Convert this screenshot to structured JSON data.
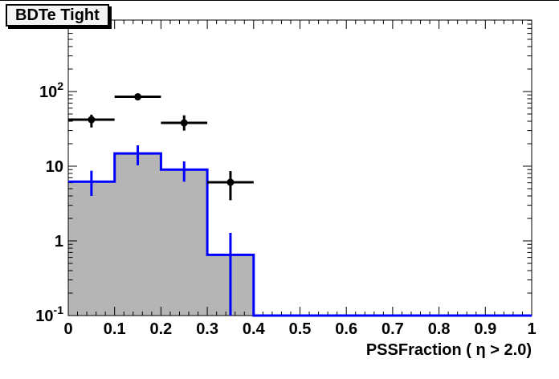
{
  "title": "BDTe Tight",
  "colors": {
    "background": "#ffffff",
    "frame": "#000000",
    "hist_fill": "#b5b5b5",
    "hist_line": "#0000ff",
    "marker": "#000000",
    "title_box_bg": "#f4f4f4"
  },
  "chart_data": {
    "type": "bar",
    "title": "BDTe Tight",
    "xlabel": "PSSFraction ( η > 2.0)",
    "ylabel": "",
    "xlim": [
      0,
      1
    ],
    "ylim": [
      0.1,
      905
    ],
    "yscale": "log",
    "grid": false,
    "legend": "none",
    "bin_edges": [
      0,
      0.1,
      0.2,
      0.3,
      0.4,
      0.5,
      0.6,
      0.7,
      0.8,
      0.9,
      1.0
    ],
    "series": [
      {
        "name": "filled-histogram",
        "type": "bar",
        "line_color": "#0000ff",
        "fill_color": "#b5b5b5",
        "values": [
          6.2,
          14.8,
          9.0,
          0.65,
          0,
          0,
          0,
          0,
          0,
          0
        ],
        "error_bars": [
          {
            "x": 0.05,
            "lo": 4.0,
            "hi": 8.7
          },
          {
            "x": 0.15,
            "lo": 10.3,
            "hi": 19.0
          },
          {
            "x": 0.25,
            "lo": 6.2,
            "hi": 11.6
          },
          {
            "x": 0.35,
            "lo": 0.1,
            "hi": 1.28
          }
        ]
      },
      {
        "name": "data-points",
        "type": "scatter",
        "color": "#000000",
        "points": [
          {
            "x": 0.05,
            "y": 42,
            "ylo": 33,
            "yhi": 49,
            "xlo": 0.0,
            "xhi": 0.1
          },
          {
            "x": 0.15,
            "y": 85,
            "ylo": 76,
            "yhi": 94,
            "xlo": 0.1,
            "xhi": 0.2
          },
          {
            "x": 0.25,
            "y": 38,
            "ylo": 30,
            "yhi": 48,
            "xlo": 0.2,
            "xhi": 0.3
          },
          {
            "x": 0.35,
            "y": 6.1,
            "ylo": 3.5,
            "yhi": 8.6,
            "xlo": 0.3,
            "xhi": 0.4
          }
        ]
      }
    ],
    "x_ticks": {
      "values": [
        0,
        0.1,
        0.2,
        0.3,
        0.4,
        0.5,
        0.6,
        0.7,
        0.8,
        0.9,
        1
      ],
      "labels": [
        "0",
        "0.1",
        "0.2",
        "0.3",
        "0.4",
        "0.5",
        "0.6",
        "0.7",
        "0.8",
        "0.9",
        "1"
      ],
      "minor_step": 0.02
    },
    "y_ticks": [
      {
        "value": 0.1,
        "base": "10",
        "sup": "-1"
      },
      {
        "value": 1,
        "base": "1",
        "sup": ""
      },
      {
        "value": 10,
        "base": "10",
        "sup": ""
      },
      {
        "value": 100,
        "base": "10",
        "sup": "2"
      }
    ]
  }
}
